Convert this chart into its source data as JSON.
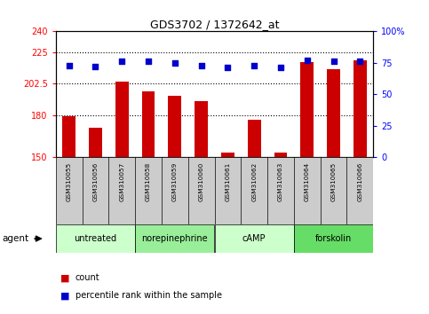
{
  "title": "GDS3702 / 1372642_at",
  "samples": [
    "GSM310055",
    "GSM310056",
    "GSM310057",
    "GSM310058",
    "GSM310059",
    "GSM310060",
    "GSM310061",
    "GSM310062",
    "GSM310063",
    "GSM310064",
    "GSM310065",
    "GSM310066"
  ],
  "counts": [
    179,
    171,
    204,
    197,
    194,
    190,
    153,
    177,
    153,
    218,
    213,
    219
  ],
  "percentile_ranks": [
    73,
    72,
    76,
    76,
    75,
    73,
    71,
    73,
    71,
    77,
    76,
    76
  ],
  "groups": [
    {
      "label": "untreated",
      "start": 0,
      "end": 3
    },
    {
      "label": "norepinephrine",
      "start": 3,
      "end": 6
    },
    {
      "label": "cAMP",
      "start": 6,
      "end": 9
    },
    {
      "label": "forskolin",
      "start": 9,
      "end": 12
    }
  ],
  "ylim_left": [
    150,
    240
  ],
  "yticks_left": [
    150,
    180,
    202.5,
    225,
    240
  ],
  "ytick_labels_left": [
    "150",
    "180",
    "202.5",
    "225",
    "240"
  ],
  "ylim_right": [
    0,
    100
  ],
  "yticks_right": [
    0,
    25,
    50,
    75,
    100
  ],
  "ytick_labels_right": [
    "0",
    "25",
    "50",
    "75",
    "100%"
  ],
  "bar_color": "#cc0000",
  "dot_color": "#0000cc",
  "bg_color_samples": "#cccccc",
  "bg_color_group0": "#ccffcc",
  "bg_color_group1": "#99ee99",
  "bg_color_group2": "#ccffcc",
  "bg_color_group3": "#66dd66",
  "agent_label": "agent",
  "legend_count_label": "count",
  "legend_pct_label": "percentile rank within the sample",
  "dotted_line_y": [
    180,
    202.5,
    225
  ],
  "bar_width": 0.5
}
